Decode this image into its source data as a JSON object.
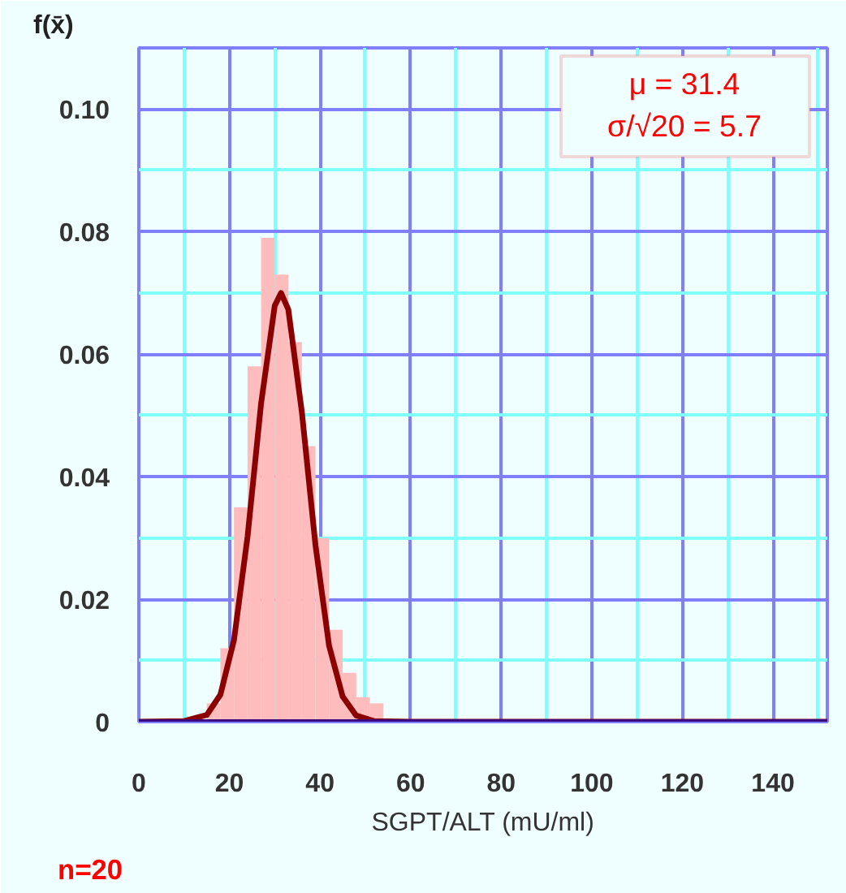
{
  "chart_data": {
    "type": "histogram",
    "xlabel": "SGPT/ALT (mU/ml)",
    "ylabel": "f(x̄)",
    "bins": [
      15,
      18,
      21,
      24,
      27,
      30,
      33,
      36,
      39,
      42,
      45,
      48,
      51,
      54
    ],
    "values": [
      0.003,
      0.012,
      0.035,
      0.058,
      0.079,
      0.073,
      0.062,
      0.045,
      0.03,
      0.015,
      0.008,
      0.004,
      0.003
    ],
    "color": "#ffbcbc",
    "series": [
      {
        "type": "line",
        "color": "#8b0000",
        "x": [
          0,
          10,
          15,
          18,
          21,
          24,
          27,
          30,
          31.4,
          33,
          36,
          39,
          42,
          45,
          48,
          52,
          60,
          152
        ],
        "values": [
          0,
          0.0001,
          0.0011,
          0.0044,
          0.0133,
          0.0302,
          0.052,
          0.0679,
          0.07,
          0.0673,
          0.0505,
          0.0288,
          0.0124,
          0.0041,
          0.001,
          0.0001,
          0,
          0
        ]
      }
    ],
    "xlim": [
      0,
      152
    ],
    "ylim": [
      0,
      0.11
    ],
    "xticks": [
      0,
      {
        "value": 10,
        "label": null
      },
      20,
      {
        "value": 30,
        "label": null
      },
      40,
      {
        "value": 50,
        "label": null
      },
      60,
      {
        "value": 70,
        "label": null
      },
      80,
      {
        "value": 90,
        "label": null
      },
      100,
      {
        "value": 110,
        "label": null
      },
      120,
      {
        "value": 130,
        "label": null
      },
      140,
      {
        "value": 150,
        "label": null
      }
    ],
    "yticks": [
      {
        "value": 0,
        "label": "0"
      },
      {
        "value": 0.01,
        "label": null
      },
      0.02,
      {
        "value": 0.03,
        "label": null
      },
      0.04,
      {
        "value": 0.05,
        "label": null
      },
      0.06,
      {
        "value": 0.07,
        "label": null
      },
      0.08,
      {
        "value": 0.09,
        "label": null
      },
      {
        "value": 0.1,
        "label": "0.10"
      }
    ],
    "grid": true,
    "annotations": [
      "μ = 31.4",
      "σ/√20 = 5.7",
      "n=20"
    ]
  }
}
